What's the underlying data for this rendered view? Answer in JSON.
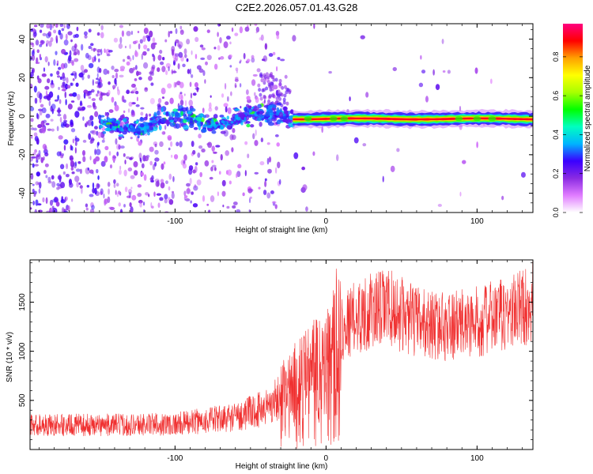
{
  "title": "C2E2.2026.057.01.43.G28",
  "chart_data": [
    {
      "type": "heatmap",
      "name": "spectrogram",
      "xlabel": "Height of straight line (km)",
      "ylabel": "Frequency (Hz)",
      "xlim": [
        -196,
        137
      ],
      "ylim": [
        -50,
        48
      ],
      "xticks": [
        -100,
        0,
        100
      ],
      "yticks": [
        -40,
        -20,
        0,
        20,
        40
      ],
      "colorbar": {
        "label": "Normalized spectral amplitude",
        "range": [
          0,
          0.97
        ],
        "ticks": [
          "0.0",
          "0.2",
          "0.4",
          "0.6",
          "0.8"
        ],
        "tick_values": [
          0,
          0.2,
          0.4,
          0.6,
          0.8
        ],
        "colors": [
          "#ffffff",
          "#e07cff",
          "#8a2be2",
          "#3a00ff",
          "#00b4ff",
          "#00ffc0",
          "#00ff00",
          "#a8ff00",
          "#ffff00",
          "#ffa000",
          "#ff0000",
          "#ff0080"
        ]
      },
      "features": [
        {
          "region": "noise",
          "x": [
            -196,
            -30
          ],
          "freq": [
            -50,
            48
          ],
          "amplitude": 0.1
        },
        {
          "region": "signal track",
          "x": [
            -150,
            -22
          ],
          "freq": [
            -12,
            8
          ],
          "amplitude": 0.3
        },
        {
          "region": "tone",
          "x": [
            -22,
            137
          ],
          "freq": [
            -2,
            0
          ],
          "amplitude": 0.9
        }
      ]
    },
    {
      "type": "line",
      "name": "snr",
      "xlabel": "Height of straight line (km)",
      "ylabel": "SNR (10 * v/v)",
      "xlim": [
        -196,
        137
      ],
      "ylim": [
        0,
        1930
      ],
      "xticks": [
        -100,
        0,
        100
      ],
      "yticks": [
        500,
        1000,
        1500
      ],
      "color": "#f03030",
      "series": [
        {
          "name": "SNR",
          "x": [
            -196,
            -150,
            -100,
            -60,
            -40,
            -20,
            0,
            5,
            8,
            10,
            20,
            40,
            60,
            80,
            100,
            120,
            137
          ],
          "y": [
            250,
            250,
            260,
            330,
            430,
            650,
            880,
            1000,
            1150,
            1250,
            1350,
            1450,
            1300,
            1250,
            1300,
            1380,
            1500
          ]
        }
      ]
    }
  ]
}
